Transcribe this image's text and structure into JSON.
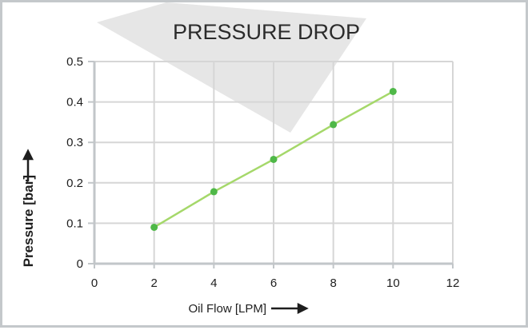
{
  "chart_data": {
    "type": "line",
    "title": "PRESSURE DROP",
    "xlabel": "Oil Flow [LPM]",
    "ylabel": "Pressure [bar]",
    "x": [
      2,
      4,
      6,
      8,
      10
    ],
    "series": [
      {
        "values": [
          0.09,
          0.178,
          0.258,
          0.344,
          0.426
        ]
      }
    ],
    "xlim": [
      0,
      12
    ],
    "ylim": [
      0,
      0.5
    ],
    "xticks": [
      "0",
      "2",
      "4",
      "6",
      "8",
      "10",
      "12"
    ],
    "yticks": [
      "0",
      "0.1",
      "0.2",
      "0.3",
      "0.4",
      "0.5"
    ],
    "grid": true,
    "colors": {
      "line": "#a5d86a",
      "marker": "#4fb848",
      "grid": "#d6d6d6",
      "axis": "#c2c6c9",
      "watermark": "#e6e6e6"
    }
  }
}
